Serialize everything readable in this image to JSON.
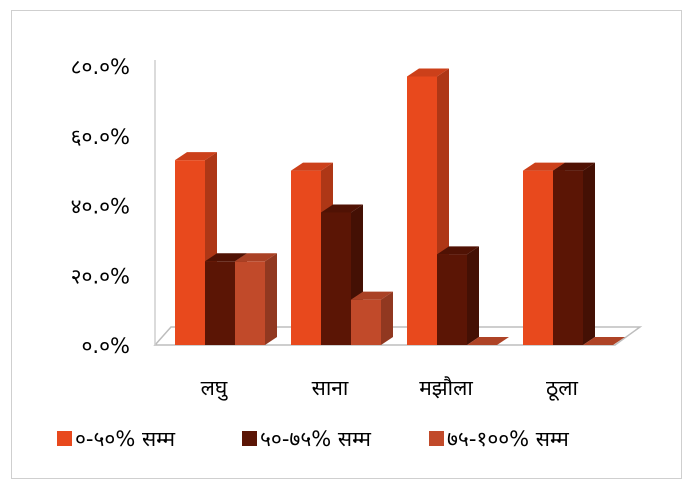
{
  "chart_data": {
    "type": "bar",
    "style": "3d-clustered-column",
    "title": "",
    "xlabel": "",
    "ylabel": "",
    "ylim": [
      0,
      80
    ],
    "y_tick_labels": [
      "०.०%",
      "२०.०%",
      "४०.०%",
      "६०.०%",
      "८०.०%"
    ],
    "y_tick_values": [
      0,
      20,
      40,
      60,
      80
    ],
    "categories": [
      "लघु",
      "साना",
      "मझौला",
      "ठूला"
    ],
    "series": [
      {
        "name": "०-५०% सम्म",
        "color": "#e8491d",
        "values": [
          53,
          50,
          77,
          50
        ]
      },
      {
        "name": "५०-७५% सम्म",
        "color": "#5b1505",
        "values": [
          24,
          38,
          26,
          50
        ]
      },
      {
        "name": "७५-१००% सम्म",
        "color": "#c14a2a",
        "values": [
          24,
          13,
          0,
          0
        ]
      }
    ],
    "grid": false,
    "legend_position": "bottom"
  }
}
